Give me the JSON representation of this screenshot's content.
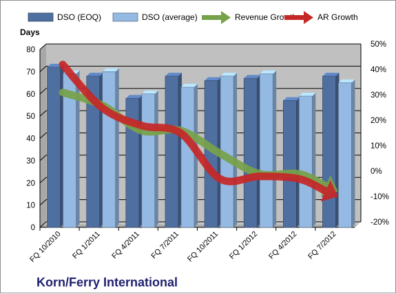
{
  "chart_data": {
    "type": "bar",
    "title": "Korn/Ferry International",
    "categories": [
      "FQ 10/2010",
      "FQ 1/2011",
      "FQ 4/2011",
      "FQ 7/2011",
      "FQ 10/2011",
      "FQ 1/2012",
      "FQ 4/2012",
      "FQ 7/2012"
    ],
    "y_left": {
      "label": "Days",
      "min": 0,
      "max": 80,
      "step": 10,
      "ticks": [
        "0",
        "10",
        "20",
        "30",
        "40",
        "50",
        "60",
        "70",
        "80"
      ]
    },
    "y_right": {
      "label": "",
      "min": -20,
      "max": 50,
      "step": 10,
      "ticks": [
        "-20%",
        "-10%",
        "0%",
        "10%",
        "20%",
        "30%",
        "40%",
        "50%"
      ]
    },
    "series": [
      {
        "name": "DSO (EOQ)",
        "kind": "bar",
        "axis": "left",
        "color": "#4f6fa1",
        "values": [
          72,
          68,
          58,
          68,
          66,
          67,
          57,
          68
        ]
      },
      {
        "name": "DSO (average)",
        "kind": "bar",
        "axis": "left",
        "color": "#94b9e2",
        "values": [
          69,
          70,
          60,
          63,
          68,
          69,
          59,
          65
        ]
      },
      {
        "name": "Revenue Growth",
        "kind": "arrow-line",
        "axis": "right",
        "color": "#77a14a",
        "values": [
          32,
          27,
          17,
          17,
          8,
          0,
          0,
          -7
        ]
      },
      {
        "name": "AR Growth",
        "kind": "arrow-line",
        "axis": "right",
        "color": "#c62828",
        "values": [
          43,
          26,
          19,
          16,
          -2,
          -1,
          -2,
          -9
        ]
      }
    ],
    "grid": true,
    "legend": "top",
    "plot_background": "#c0c0c0"
  }
}
